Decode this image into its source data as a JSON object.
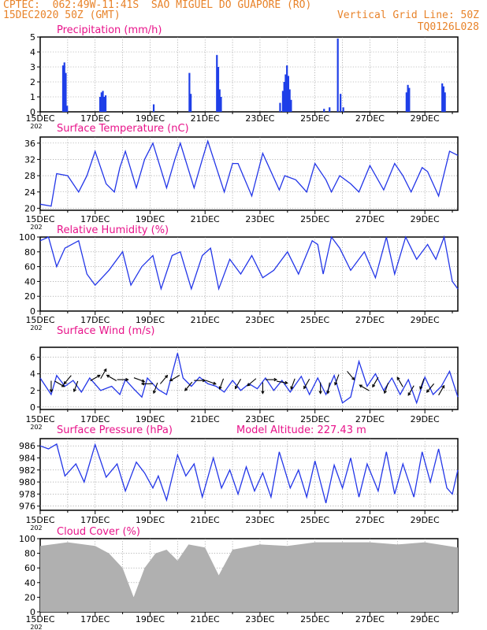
{
  "header": {
    "line1_left": "CPTEC:  062:49W-11:41S  SAO MIGUEL DO GUAPORE (RO)",
    "line2_left": "15DEC2020 50Z (GMT)",
    "line2_right": "Vertical Grid Line: 50Z",
    "line3_right": "TQ0126L028"
  },
  "colors": {
    "header": "#e8832a",
    "title": "#e8138a",
    "line": "#2336e8",
    "bar": "#1f3fe8",
    "cloud": "#b0b0b0",
    "arrow": "#000000"
  },
  "x_ticks": [
    "15DEC",
    "17DEC",
    "19DEC",
    "21DEC",
    "23DEC",
    "25DEC",
    "27DEC",
    "29DEC"
  ],
  "x_tick_sublabel": "202",
  "chart_data": [
    {
      "type": "bar",
      "title": "Precipitation (mm/h)",
      "ylim": [
        0,
        5
      ],
      "yticks": [
        0,
        1,
        2,
        3,
        4,
        5
      ],
      "series": [
        {
          "values": [
            [
              0.8,
              3.1
            ],
            [
              0.85,
              3.3
            ],
            [
              0.9,
              2.6
            ],
            [
              0.95,
              0.4
            ],
            [
              2.15,
              1.0
            ],
            [
              2.2,
              1.3
            ],
            [
              2.25,
              1.4
            ],
            [
              2.3,
              1.0
            ],
            [
              2.35,
              1.1
            ],
            [
              4.1,
              0.5
            ],
            [
              5.4,
              2.6
            ],
            [
              5.45,
              1.2
            ],
            [
              6.4,
              3.8
            ],
            [
              6.45,
              3.0
            ],
            [
              6.5,
              1.5
            ],
            [
              6.55,
              1.0
            ],
            [
              8.7,
              0.6
            ],
            [
              8.8,
              1.4
            ],
            [
              8.85,
              2.0
            ],
            [
              8.9,
              2.5
            ],
            [
              8.95,
              3.1
            ],
            [
              9.0,
              2.4
            ],
            [
              9.05,
              1.5
            ],
            [
              9.1,
              0.8
            ],
            [
              10.3,
              0.2
            ],
            [
              10.5,
              0.3
            ],
            [
              10.8,
              4.9
            ],
            [
              10.9,
              1.2
            ],
            [
              11.0,
              0.3
            ],
            [
              13.3,
              1.3
            ],
            [
              13.35,
              1.8
            ],
            [
              13.4,
              1.6
            ],
            [
              14.6,
              1.9
            ],
            [
              14.65,
              1.7
            ],
            [
              14.7,
              1.3
            ]
          ]
        }
      ]
    },
    {
      "type": "line",
      "title": "Surface Temperature (nC)",
      "ylim": [
        19.5,
        37.5
      ],
      "yticks": [
        20,
        24,
        28,
        32,
        36
      ],
      "series": [
        {
          "values": [
            [
              0,
              21
            ],
            [
              0.4,
              20.5
            ],
            [
              0.6,
              28.5
            ],
            [
              1.0,
              28
            ],
            [
              1.4,
              24
            ],
            [
              1.7,
              28
            ],
            [
              2.0,
              34
            ],
            [
              2.4,
              26
            ],
            [
              2.7,
              24
            ],
            [
              2.9,
              30
            ],
            [
              3.1,
              34
            ],
            [
              3.5,
              25
            ],
            [
              3.8,
              32
            ],
            [
              4.1,
              36
            ],
            [
              4.6,
              25
            ],
            [
              4.9,
              32
            ],
            [
              5.1,
              36
            ],
            [
              5.6,
              25
            ],
            [
              5.9,
              32
            ],
            [
              6.1,
              36.5
            ],
            [
              6.7,
              24
            ],
            [
              7.0,
              31
            ],
            [
              7.2,
              31
            ],
            [
              7.7,
              23
            ],
            [
              8.1,
              33.5
            ],
            [
              8.7,
              24.5
            ],
            [
              8.9,
              28
            ],
            [
              9.3,
              27
            ],
            [
              9.7,
              24
            ],
            [
              10.0,
              31
            ],
            [
              10.4,
              27
            ],
            [
              10.6,
              24
            ],
            [
              10.9,
              28
            ],
            [
              11.3,
              26
            ],
            [
              11.6,
              24
            ],
            [
              12.0,
              30.5
            ],
            [
              12.5,
              24.5
            ],
            [
              12.9,
              31
            ],
            [
              13.2,
              28
            ],
            [
              13.5,
              24
            ],
            [
              13.9,
              30
            ],
            [
              14.1,
              29
            ],
            [
              14.5,
              23
            ],
            [
              14.9,
              34
            ],
            [
              15.2,
              33
            ]
          ]
        }
      ]
    },
    {
      "type": "line",
      "title": "Relative Humidity (%)",
      "ylim": [
        0,
        100
      ],
      "yticks": [
        0,
        20,
        40,
        60,
        80,
        100
      ],
      "series": [
        {
          "values": [
            [
              0,
              95
            ],
            [
              0.3,
              100
            ],
            [
              0.6,
              60
            ],
            [
              0.9,
              85
            ],
            [
              1.4,
              95
            ],
            [
              1.7,
              50
            ],
            [
              2.0,
              35
            ],
            [
              2.5,
              55
            ],
            [
              3.0,
              80
            ],
            [
              3.3,
              35
            ],
            [
              3.7,
              60
            ],
            [
              4.1,
              75
            ],
            [
              4.4,
              30
            ],
            [
              4.8,
              75
            ],
            [
              5.1,
              80
            ],
            [
              5.5,
              30
            ],
            [
              5.9,
              75
            ],
            [
              6.2,
              85
            ],
            [
              6.5,
              30
            ],
            [
              6.9,
              70
            ],
            [
              7.3,
              50
            ],
            [
              7.7,
              75
            ],
            [
              8.1,
              45
            ],
            [
              8.5,
              55
            ],
            [
              8.8,
              70
            ],
            [
              9.0,
              80
            ],
            [
              9.4,
              50
            ],
            [
              9.9,
              95
            ],
            [
              10.1,
              90
            ],
            [
              10.3,
              50
            ],
            [
              10.6,
              100
            ],
            [
              10.9,
              85
            ],
            [
              11.3,
              55
            ],
            [
              11.8,
              80
            ],
            [
              12.2,
              45
            ],
            [
              12.6,
              100
            ],
            [
              12.9,
              50
            ],
            [
              13.3,
              100
            ],
            [
              13.7,
              70
            ],
            [
              14.1,
              90
            ],
            [
              14.4,
              70
            ],
            [
              14.7,
              100
            ],
            [
              15.0,
              40
            ],
            [
              15.2,
              30
            ]
          ]
        }
      ]
    },
    {
      "type": "line",
      "title": "Surface Wind (m/s)",
      "ylim": [
        -0.3,
        7.2
      ],
      "yticks": [
        0,
        2,
        4,
        6
      ],
      "series": [
        {
          "values": [
            [
              0,
              3.5
            ],
            [
              0.4,
              1.5
            ],
            [
              0.6,
              3.8
            ],
            [
              0.9,
              2.5
            ],
            [
              1.2,
              3.2
            ],
            [
              1.5,
              1.8
            ],
            [
              1.8,
              3.5
            ],
            [
              2.2,
              2.0
            ],
            [
              2.6,
              2.5
            ],
            [
              2.9,
              1.5
            ],
            [
              3.1,
              3.3
            ],
            [
              3.4,
              2.2
            ],
            [
              3.7,
              1.2
            ],
            [
              3.9,
              3.5
            ],
            [
              4.3,
              2.1
            ],
            [
              4.6,
              1.5
            ],
            [
              4.8,
              4.0
            ],
            [
              5.0,
              6.5
            ],
            [
              5.2,
              3.5
            ],
            [
              5.5,
              2.5
            ],
            [
              5.8,
              3.6
            ],
            [
              6.1,
              2.8
            ],
            [
              6.4,
              2.5
            ],
            [
              6.7,
              1.8
            ],
            [
              7.0,
              3.2
            ],
            [
              7.3,
              2.0
            ],
            [
              7.6,
              2.8
            ],
            [
              7.9,
              2.2
            ],
            [
              8.2,
              3.5
            ],
            [
              8.5,
              2.0
            ],
            [
              8.8,
              3.2
            ],
            [
              9.1,
              1.8
            ],
            [
              9.5,
              3.7
            ],
            [
              9.8,
              1.5
            ],
            [
              10.1,
              3.5
            ],
            [
              10.4,
              1.5
            ],
            [
              10.7,
              3.8
            ],
            [
              11.0,
              0.5
            ],
            [
              11.3,
              1.2
            ],
            [
              11.6,
              5.5
            ],
            [
              11.9,
              2.5
            ],
            [
              12.2,
              4.0
            ],
            [
              12.5,
              2.0
            ],
            [
              12.8,
              3.5
            ],
            [
              13.1,
              1.5
            ],
            [
              13.4,
              3.3
            ],
            [
              13.7,
              0.5
            ],
            [
              14.0,
              3.6
            ],
            [
              14.3,
              1.5
            ],
            [
              14.6,
              2.5
            ],
            [
              14.9,
              4.3
            ],
            [
              15.2,
              1.2
            ]
          ]
        }
      ]
    },
    {
      "type": "line",
      "title": "Surface Pressure (hPa)",
      "annotation": "Model Altitude: 227.43 m",
      "ylim": [
        975.3,
        987.2
      ],
      "yticks": [
        976,
        978,
        980,
        982,
        984,
        986
      ],
      "series": [
        {
          "values": [
            [
              0,
              986
            ],
            [
              0.3,
              985.5
            ],
            [
              0.6,
              986.3
            ],
            [
              0.9,
              981
            ],
            [
              1.3,
              983
            ],
            [
              1.6,
              980
            ],
            [
              2.0,
              986.2
            ],
            [
              2.4,
              980.8
            ],
            [
              2.8,
              983
            ],
            [
              3.1,
              978.5
            ],
            [
              3.5,
              983.3
            ],
            [
              3.8,
              981.5
            ],
            [
              4.1,
              979
            ],
            [
              4.3,
              981
            ],
            [
              4.6,
              977
            ],
            [
              5.0,
              984.5
            ],
            [
              5.3,
              981
            ],
            [
              5.6,
              983
            ],
            [
              5.9,
              977.5
            ],
            [
              6.3,
              984
            ],
            [
              6.6,
              979
            ],
            [
              6.9,
              982
            ],
            [
              7.2,
              978
            ],
            [
              7.5,
              982.5
            ],
            [
              7.8,
              978.5
            ],
            [
              8.1,
              981.5
            ],
            [
              8.4,
              977.5
            ],
            [
              8.7,
              985
            ],
            [
              9.1,
              979
            ],
            [
              9.4,
              982
            ],
            [
              9.7,
              977.5
            ],
            [
              10.0,
              983.5
            ],
            [
              10.4,
              976.5
            ],
            [
              10.7,
              982.8
            ],
            [
              11.0,
              979
            ],
            [
              11.3,
              984
            ],
            [
              11.6,
              977.5
            ],
            [
              11.9,
              983
            ],
            [
              12.3,
              978.5
            ],
            [
              12.6,
              985
            ],
            [
              12.9,
              978
            ],
            [
              13.2,
              983
            ],
            [
              13.6,
              977.5
            ],
            [
              13.9,
              985
            ],
            [
              14.2,
              980
            ],
            [
              14.5,
              985.5
            ],
            [
              14.8,
              979
            ],
            [
              15.0,
              978
            ],
            [
              15.2,
              982
            ]
          ]
        }
      ]
    },
    {
      "type": "area",
      "title": "Cloud Cover (%)",
      "ylim": [
        0,
        100
      ],
      "yticks": [
        0,
        20,
        40,
        60,
        80,
        100
      ],
      "series": [
        {
          "values": [
            [
              0,
              90
            ],
            [
              1.0,
              95
            ],
            [
              2.0,
              90
            ],
            [
              2.5,
              80
            ],
            [
              3.0,
              60
            ],
            [
              3.4,
              20
            ],
            [
              3.8,
              60
            ],
            [
              4.2,
              80
            ],
            [
              4.6,
              85
            ],
            [
              5.0,
              70
            ],
            [
              5.4,
              92
            ],
            [
              6.0,
              88
            ],
            [
              6.5,
              50
            ],
            [
              7.0,
              85
            ],
            [
              8.0,
              92
            ],
            [
              9.0,
              90
            ],
            [
              10.0,
              95
            ],
            [
              11.0,
              95
            ],
            [
              12.0,
              95
            ],
            [
              13.0,
              92
            ],
            [
              14.0,
              95
            ],
            [
              15.2,
              88
            ]
          ]
        }
      ]
    }
  ]
}
